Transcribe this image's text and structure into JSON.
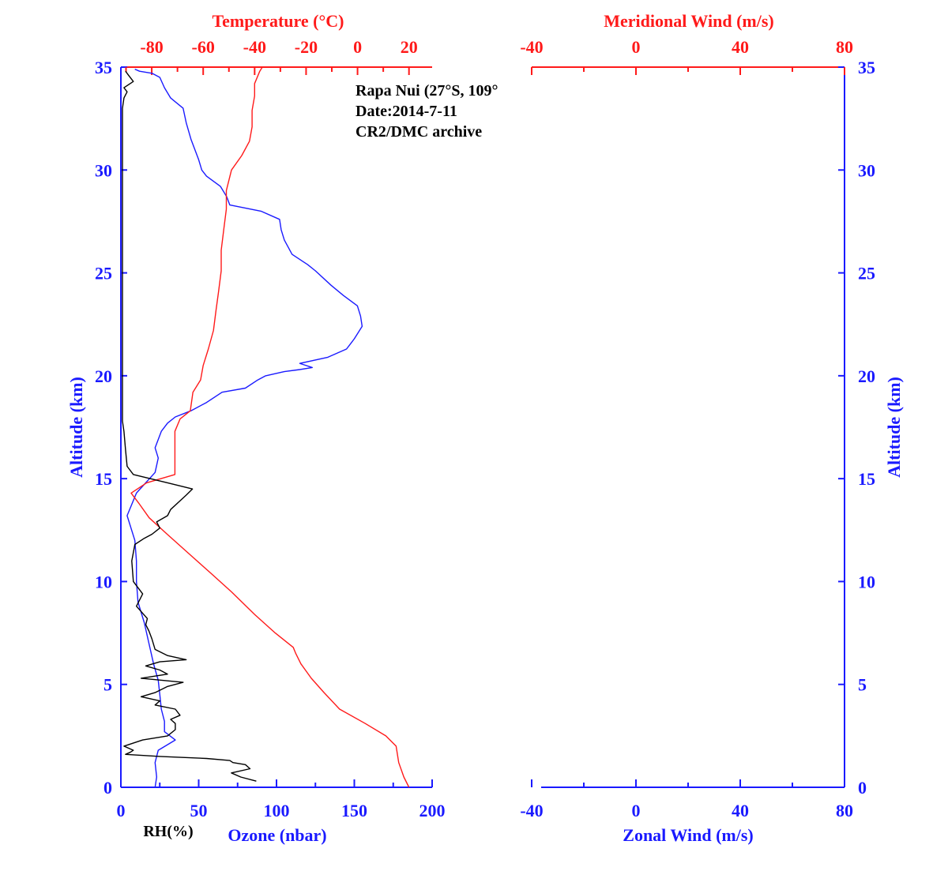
{
  "colors": {
    "ozone": "#1a1aff",
    "temperature": "#ff1a1a",
    "rh": "#000000",
    "axis_left": "#1a1aff",
    "axis_top": "#ff1a1a"
  },
  "annotation": {
    "station": "Rapa Nui (27°S, 109°",
    "date": "Date:2014-7-11",
    "archive": "CR2/DMC archive"
  },
  "left_panel": {
    "y_label": "Altitude (km)",
    "y_ticks": [
      "0",
      "5",
      "10",
      "15",
      "20",
      "25",
      "30",
      "35"
    ],
    "top_label": "Temperature (°C)",
    "top_ticks": [
      "-80",
      "-60",
      "-40",
      "-20",
      "0",
      "20"
    ],
    "bottom_ticks": [
      "0",
      "50",
      "100",
      "150",
      "200"
    ],
    "bottom_label_rh": "RH(%)",
    "bottom_label_ozone": "Ozone (nbar)"
  },
  "right_panel": {
    "y_label": "Altitude (km)",
    "y_ticks": [
      "0",
      "5",
      "10",
      "15",
      "20",
      "25",
      "30",
      "35"
    ],
    "top_label": "Meridional Wind (m/s)",
    "top_ticks": [
      "-40",
      "0",
      "40",
      "80"
    ],
    "bottom_ticks": [
      "-40",
      "0",
      "40",
      "80"
    ],
    "bottom_label": "Zonal Wind (m/s)"
  },
  "chart_data": [
    {
      "type": "line",
      "axes": {
        "y": {
          "label": "Altitude (km)",
          "unit": "km",
          "range": [
            0,
            35
          ]
        },
        "x_bottom": {
          "label": "Ozone (nbar)",
          "range": [
            0,
            200
          ],
          "also_used_by": "RH(%)"
        },
        "x_top": {
          "label": "Temperature (°C)",
          "range": [
            -92,
            29
          ]
        }
      },
      "series": [
        {
          "name": "Ozone (nbar)",
          "axis": "bottom",
          "points": [
            [
              22,
              0
            ],
            [
              23,
              0.5
            ],
            [
              22,
              1.2
            ],
            [
              24,
              1.8
            ],
            [
              35,
              2.3
            ],
            [
              28,
              2.7
            ],
            [
              28,
              3.2
            ],
            [
              26,
              3.8
            ],
            [
              25,
              4.5
            ],
            [
              24,
              5.2
            ],
            [
              21,
              6
            ],
            [
              18,
              7
            ],
            [
              15,
              8
            ],
            [
              11,
              9
            ],
            [
              10,
              10
            ],
            [
              10,
              11
            ],
            [
              9,
              12
            ],
            [
              4,
              13.2
            ],
            [
              10,
              14.3
            ],
            [
              22,
              15.3
            ],
            [
              24,
              16
            ],
            [
              22,
              16.5
            ],
            [
              26,
              17.3
            ],
            [
              30,
              17.7
            ],
            [
              35,
              18
            ],
            [
              45,
              18.3
            ],
            [
              55,
              18.7
            ],
            [
              65,
              19.2
            ],
            [
              80,
              19.4
            ],
            [
              88,
              19.8
            ],
            [
              93,
              20
            ],
            [
              105,
              20.2
            ],
            [
              115,
              20.3
            ],
            [
              123,
              20.4
            ],
            [
              115,
              20.6
            ],
            [
              133,
              20.9
            ],
            [
              145,
              21.3
            ],
            [
              148,
              21.6
            ],
            [
              150,
              21.8
            ],
            [
              155,
              22.4
            ],
            [
              154,
              22.9
            ],
            [
              152,
              23.4
            ],
            [
              143,
              23.9
            ],
            [
              135,
              24.4
            ],
            [
              125,
              25.1
            ],
            [
              120,
              25.4
            ],
            [
              110,
              25.9
            ],
            [
              105,
              26.6
            ],
            [
              103,
              27.1
            ],
            [
              102,
              27.6
            ],
            [
              90,
              28
            ],
            [
              70,
              28.3
            ],
            [
              68,
              28.7
            ],
            [
              64,
              29.2
            ],
            [
              55,
              29.7
            ],
            [
              52,
              30
            ],
            [
              50,
              30.5
            ],
            [
              45,
              31.5
            ],
            [
              42,
              32.3
            ],
            [
              40,
              33
            ],
            [
              32,
              33.5
            ],
            [
              28,
              34
            ],
            [
              25,
              34.5
            ],
            [
              20,
              34.7
            ],
            [
              12,
              34.8
            ],
            [
              9,
              34.9
            ]
          ]
        },
        {
          "name": "Temperature (°C)",
          "axis": "top",
          "points": [
            [
              20,
              0
            ],
            [
              18,
              0.5
            ],
            [
              16,
              1.2
            ],
            [
              15,
              2
            ],
            [
              11,
              2.5
            ],
            [
              3,
              3.1
            ],
            [
              -7,
              3.8
            ],
            [
              -13,
              4.6
            ],
            [
              -18,
              5.3
            ],
            [
              -22,
              6
            ],
            [
              -24,
              6.5
            ],
            [
              -25,
              6.8
            ],
            [
              -32,
              7.5
            ],
            [
              -40,
              8.4
            ],
            [
              -49,
              9.5
            ],
            [
              -57,
              10.4
            ],
            [
              -66,
              11.4
            ],
            [
              -74,
              12.3
            ],
            [
              -81,
              13.1
            ],
            [
              -85,
              13.8
            ],
            [
              -88,
              14.3
            ],
            [
              -82,
              14.8
            ],
            [
              -71,
              15.2
            ],
            [
              -71,
              16
            ],
            [
              -71,
              17.3
            ],
            [
              -69,
              17.9
            ],
            [
              -65,
              18.3
            ],
            [
              -64,
              19.2
            ],
            [
              -61,
              19.8
            ],
            [
              -60,
              20.5
            ],
            [
              -58,
              21.3
            ],
            [
              -56,
              22.2
            ],
            [
              -55,
              23.2
            ],
            [
              -54,
              24.1
            ],
            [
              -53,
              25.1
            ],
            [
              -53,
              26.1
            ],
            [
              -52,
              27.1
            ],
            [
              -51,
              28.1
            ],
            [
              -51,
              29
            ],
            [
              -49,
              30
            ],
            [
              -45,
              30.7
            ],
            [
              -42,
              31.4
            ],
            [
              -41,
              32.1
            ],
            [
              -41,
              32.9
            ],
            [
              -40,
              33.6
            ],
            [
              -40,
              34.2
            ],
            [
              -38,
              34.8
            ],
            [
              -37,
              35
            ]
          ]
        },
        {
          "name": "RH(%)",
          "axis": "bottom",
          "points": [
            [
              87,
              0.3
            ],
            [
              77,
              0.5
            ],
            [
              71,
              0.7
            ],
            [
              83,
              0.9
            ],
            [
              80,
              1.1
            ],
            [
              72,
              1.2
            ],
            [
              70,
              1.3
            ],
            [
              55,
              1.4
            ],
            [
              25,
              1.5
            ],
            [
              3,
              1.6
            ],
            [
              6,
              1.7
            ],
            [
              8,
              1.8
            ],
            [
              2,
              2
            ],
            [
              14,
              2.3
            ],
            [
              30,
              2.5
            ],
            [
              35,
              2.8
            ],
            [
              35,
              3.1
            ],
            [
              32,
              3.3
            ],
            [
              38,
              3.5
            ],
            [
              35,
              3.8
            ],
            [
              22,
              4
            ],
            [
              25,
              4.2
            ],
            [
              13,
              4.4
            ],
            [
              22,
              4.6
            ],
            [
              30,
              4.9
            ],
            [
              40,
              5.1
            ],
            [
              13,
              5.3
            ],
            [
              30,
              5.5
            ],
            [
              25,
              5.7
            ],
            [
              16,
              5.9
            ],
            [
              25,
              6.1
            ],
            [
              42,
              6.2
            ],
            [
              30,
              6.4
            ],
            [
              22,
              6.7
            ],
            [
              20,
              7.2
            ],
            [
              18,
              7.6
            ],
            [
              16,
              7.9
            ],
            [
              17,
              8.2
            ],
            [
              10,
              8.8
            ],
            [
              14,
              9.4
            ],
            [
              8,
              10
            ],
            [
              7,
              11
            ],
            [
              9,
              11.8
            ],
            [
              15,
              12.1
            ],
            [
              20,
              12.3
            ],
            [
              25,
              12.6
            ],
            [
              23,
              12.9
            ],
            [
              30,
              13.2
            ],
            [
              32,
              13.5
            ],
            [
              42,
              14.2
            ],
            [
              46,
              14.5
            ],
            [
              30,
              14.8
            ],
            [
              8,
              15.2
            ],
            [
              4,
              15.6
            ],
            [
              3,
              16.4
            ],
            [
              2,
              17.3
            ],
            [
              1,
              17.8
            ],
            [
              1,
              18.5
            ],
            [
              1,
              20
            ],
            [
              1,
              30
            ],
            [
              1,
              33
            ],
            [
              2,
              33.5
            ],
            [
              4,
              33.8
            ],
            [
              2,
              34
            ],
            [
              8,
              34.3
            ],
            [
              5,
              34.6
            ],
            [
              3,
              34.8
            ]
          ]
        }
      ]
    },
    {
      "type": "line",
      "axes": {
        "y": {
          "label": "Altitude (km)",
          "unit": "km",
          "range": [
            0,
            35
          ]
        },
        "x_bottom": {
          "label": "Zonal Wind (m/s)",
          "range": [
            -40,
            80
          ]
        },
        "x_top": {
          "label": "Meridional Wind (m/s)",
          "range": [
            -40,
            80
          ]
        }
      },
      "series": []
    }
  ]
}
